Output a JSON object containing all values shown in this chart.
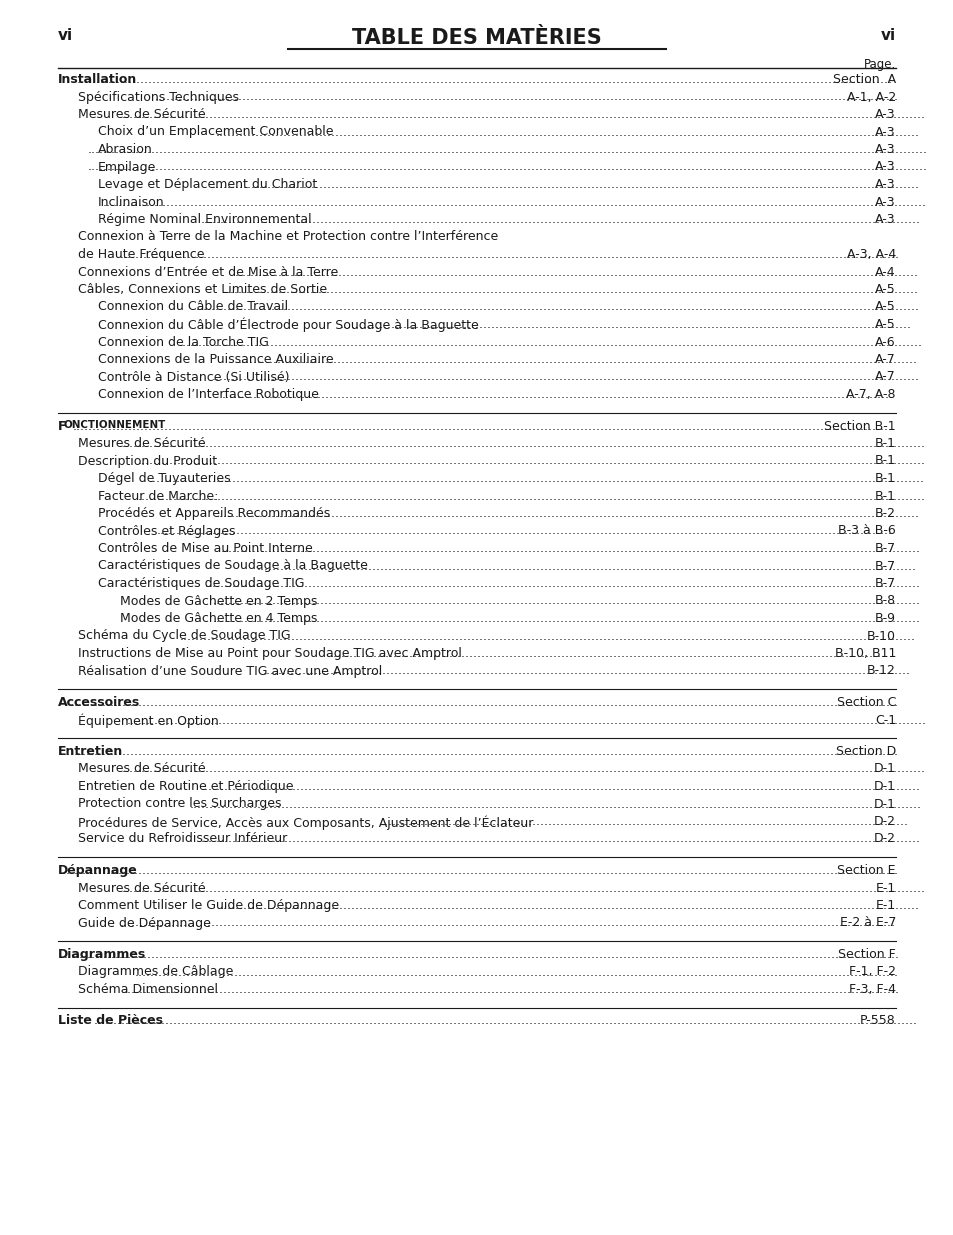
{
  "title": "TABLE DES MATÈRIES",
  "vi": "vi",
  "page_label": "Page.",
  "bg_color": "#ffffff",
  "text_color": "#1a1a1a",
  "entries": [
    {
      "level": 0,
      "bold": true,
      "smallcaps": false,
      "text": "Installation",
      "page": "Section  A",
      "sep_above": false,
      "no_dots_first_line": false
    },
    {
      "level": 1,
      "bold": false,
      "smallcaps": false,
      "text": "Spécifications Techniques",
      "page": "A-1, A-2",
      "sep_above": false,
      "no_dots_first_line": false
    },
    {
      "level": 1,
      "bold": false,
      "smallcaps": false,
      "text": "Mesures de Sécurité",
      "page": "A-3",
      "sep_above": false,
      "no_dots_first_line": false
    },
    {
      "level": 2,
      "bold": false,
      "smallcaps": false,
      "text": "Choix d’un Emplacement Convenable",
      "page": "A-3",
      "sep_above": false,
      "no_dots_first_line": false
    },
    {
      "level": 2,
      "bold": false,
      "smallcaps": false,
      "text": "Abrasion",
      "page": "A-3",
      "sep_above": false,
      "no_dots_first_line": false
    },
    {
      "level": 2,
      "bold": false,
      "smallcaps": false,
      "text": "Empilage",
      "page": "A-3",
      "sep_above": false,
      "no_dots_first_line": false
    },
    {
      "level": 2,
      "bold": false,
      "smallcaps": false,
      "text": "Levage et Déplacement du Chariot",
      "page": "A-3",
      "sep_above": false,
      "no_dots_first_line": false
    },
    {
      "level": 2,
      "bold": false,
      "smallcaps": false,
      "text": "Inclinaison",
      "page": "A-3",
      "sep_above": false,
      "no_dots_first_line": false
    },
    {
      "level": 2,
      "bold": false,
      "smallcaps": false,
      "text": "Régime Nominal Environnemental",
      "page": "A-3",
      "sep_above": false,
      "no_dots_first_line": false
    },
    {
      "level": 1,
      "bold": false,
      "smallcaps": false,
      "text": "Connexion à Terre de la Machine et Protection contre l’Interférence",
      "page": "",
      "sep_above": false,
      "no_dots_first_line": true
    },
    {
      "level": 1,
      "bold": false,
      "smallcaps": false,
      "text": "de Haute Fréquence",
      "page": "A-3, A-4",
      "sep_above": false,
      "no_dots_first_line": false
    },
    {
      "level": 1,
      "bold": false,
      "smallcaps": false,
      "text": "Connexions d’Entrée et de Mise à la Terre",
      "page": "A-4",
      "sep_above": false,
      "no_dots_first_line": false
    },
    {
      "level": 1,
      "bold": false,
      "smallcaps": false,
      "text": "Câbles, Connexions et Limites de Sortie",
      "page": "A-5",
      "sep_above": false,
      "no_dots_first_line": false
    },
    {
      "level": 2,
      "bold": false,
      "smallcaps": false,
      "text": "Connexion du Câble de Travail",
      "page": "A-5",
      "sep_above": false,
      "no_dots_first_line": false
    },
    {
      "level": 2,
      "bold": false,
      "smallcaps": false,
      "text": "Connexion du Câble d’Électrode pour Soudage à la Baguette",
      "page": "A-5",
      "sep_above": false,
      "no_dots_first_line": false
    },
    {
      "level": 2,
      "bold": false,
      "smallcaps": false,
      "text": "Connexion de la Torche TIG",
      "page": "A-6",
      "sep_above": false,
      "no_dots_first_line": false
    },
    {
      "level": 2,
      "bold": false,
      "smallcaps": false,
      "text": "Connexions de la Puissance Auxiliaire",
      "page": "A-7",
      "sep_above": false,
      "no_dots_first_line": false
    },
    {
      "level": 2,
      "bold": false,
      "smallcaps": false,
      "text": "Contrôle à Distance (Si Utilisé)",
      "page": "A-7",
      "sep_above": false,
      "no_dots_first_line": false
    },
    {
      "level": 2,
      "bold": false,
      "smallcaps": false,
      "text": "Connexion de l’Interface Robotique",
      "page": "A-7, A-8",
      "sep_above": false,
      "no_dots_first_line": false
    },
    {
      "level": 0,
      "bold": true,
      "smallcaps": true,
      "text": "Fonctionnement",
      "page": "Section B-1",
      "sep_above": true,
      "no_dots_first_line": false
    },
    {
      "level": 1,
      "bold": false,
      "smallcaps": false,
      "text": "Mesures de Sécurité",
      "page": "B-1",
      "sep_above": false,
      "no_dots_first_line": false
    },
    {
      "level": 1,
      "bold": false,
      "smallcaps": false,
      "text": "Description du Produit",
      "page": "B-1",
      "sep_above": false,
      "no_dots_first_line": false
    },
    {
      "level": 2,
      "bold": false,
      "smallcaps": false,
      "text": "Dégel de Tuyauteries",
      "page": "B-1",
      "sep_above": false,
      "no_dots_first_line": false
    },
    {
      "level": 2,
      "bold": false,
      "smallcaps": false,
      "text": "Facteur de Marche:",
      "page": "B-1",
      "sep_above": false,
      "no_dots_first_line": false
    },
    {
      "level": 2,
      "bold": false,
      "smallcaps": false,
      "text": "Procédés et Appareils Recommandés",
      "page": "B-2",
      "sep_above": false,
      "no_dots_first_line": false
    },
    {
      "level": 2,
      "bold": false,
      "smallcaps": false,
      "text": "Contrôles et Réglages",
      "page": "B-3 à B-6",
      "sep_above": false,
      "no_dots_first_line": false
    },
    {
      "level": 2,
      "bold": false,
      "smallcaps": false,
      "text": "Contrôles de Mise au Point Interne",
      "page": "B-7",
      "sep_above": false,
      "no_dots_first_line": false
    },
    {
      "level": 2,
      "bold": false,
      "smallcaps": false,
      "text": "Caractéristiques de Soudage à la Baguette",
      "page": "B-7",
      "sep_above": false,
      "no_dots_first_line": false
    },
    {
      "level": 2,
      "bold": false,
      "smallcaps": false,
      "text": "Caractéristiques de Soudage TIG",
      "page": "B-7",
      "sep_above": false,
      "no_dots_first_line": false
    },
    {
      "level": 3,
      "bold": false,
      "smallcaps": false,
      "text": "Modes de Gâchette en 2 Temps",
      "page": "B-8",
      "sep_above": false,
      "no_dots_first_line": false
    },
    {
      "level": 3,
      "bold": false,
      "smallcaps": false,
      "text": "Modes de Gâchette en 4 Temps",
      "page": "B-9",
      "sep_above": false,
      "no_dots_first_line": false
    },
    {
      "level": 1,
      "bold": false,
      "smallcaps": false,
      "text": "Schéma du Cycle de Soudage TIG",
      "page": "B-10",
      "sep_above": false,
      "no_dots_first_line": false
    },
    {
      "level": 1,
      "bold": false,
      "smallcaps": false,
      "text": "Instructions de Mise au Point pour Soudage TIG avec Amptrol",
      "page": "B-10, B11",
      "sep_above": false,
      "no_dots_first_line": false
    },
    {
      "level": 1,
      "bold": false,
      "smallcaps": false,
      "text": "Réalisation d’une Soudure TIG avec une Amptrol",
      "page": "B-12",
      "sep_above": false,
      "no_dots_first_line": false
    },
    {
      "level": 0,
      "bold": true,
      "smallcaps": false,
      "text": "Accessoires",
      "page": "Section C",
      "sep_above": true,
      "no_dots_first_line": false
    },
    {
      "level": 1,
      "bold": false,
      "smallcaps": false,
      "text": "Équipement en Option",
      "page": "C-1",
      "sep_above": false,
      "no_dots_first_line": false
    },
    {
      "level": 0,
      "bold": true,
      "smallcaps": false,
      "text": "Entretien",
      "page": "Section D",
      "sep_above": true,
      "no_dots_first_line": false
    },
    {
      "level": 1,
      "bold": false,
      "smallcaps": false,
      "text": "Mesures de Sécurité",
      "page": "D-1",
      "sep_above": false,
      "no_dots_first_line": false
    },
    {
      "level": 1,
      "bold": false,
      "smallcaps": false,
      "text": "Entretien de Routine et Périodique",
      "page": "D-1",
      "sep_above": false,
      "no_dots_first_line": false
    },
    {
      "level": 1,
      "bold": false,
      "smallcaps": false,
      "text": "Protection contre les Surcharges",
      "page": "D-1",
      "sep_above": false,
      "no_dots_first_line": false
    },
    {
      "level": 1,
      "bold": false,
      "smallcaps": false,
      "text": "Procédures de Service, Accès aux Composants, Ajustement de l’Éclateur",
      "page": "D-2",
      "sep_above": false,
      "no_dots_first_line": false
    },
    {
      "level": 1,
      "bold": false,
      "smallcaps": false,
      "text": "Service du Refroidisseur Inférieur",
      "page": "D-2",
      "sep_above": false,
      "no_dots_first_line": false
    },
    {
      "level": 0,
      "bold": true,
      "smallcaps": false,
      "text": "Dépannage",
      "page": "Section E",
      "sep_above": true,
      "no_dots_first_line": false
    },
    {
      "level": 1,
      "bold": false,
      "smallcaps": false,
      "text": "Mesures de Sécurité",
      "page": "E-1",
      "sep_above": false,
      "no_dots_first_line": false
    },
    {
      "level": 1,
      "bold": false,
      "smallcaps": false,
      "text": "Comment Utiliser le Guide de Dépannage",
      "page": "E-1",
      "sep_above": false,
      "no_dots_first_line": false
    },
    {
      "level": 1,
      "bold": false,
      "smallcaps": false,
      "text": "Guide de Dépannage",
      "page": "E-2 à E-7",
      "sep_above": false,
      "no_dots_first_line": false
    },
    {
      "level": 0,
      "bold": true,
      "smallcaps": false,
      "text": "Diagrammes",
      "page": "Section F",
      "sep_above": true,
      "no_dots_first_line": false
    },
    {
      "level": 1,
      "bold": false,
      "smallcaps": false,
      "text": "Diagrammes de Câblage",
      "page": "F-1, F-2",
      "sep_above": false,
      "no_dots_first_line": false
    },
    {
      "level": 1,
      "bold": false,
      "smallcaps": false,
      "text": "Schéma Dimensionnel",
      "page": "F-3, F-4",
      "sep_above": false,
      "no_dots_first_line": false
    },
    {
      "level": 0,
      "bold": true,
      "smallcaps": false,
      "text": "Liste de Pièces",
      "page": "P-558",
      "sep_above": true,
      "no_dots_first_line": false
    }
  ]
}
